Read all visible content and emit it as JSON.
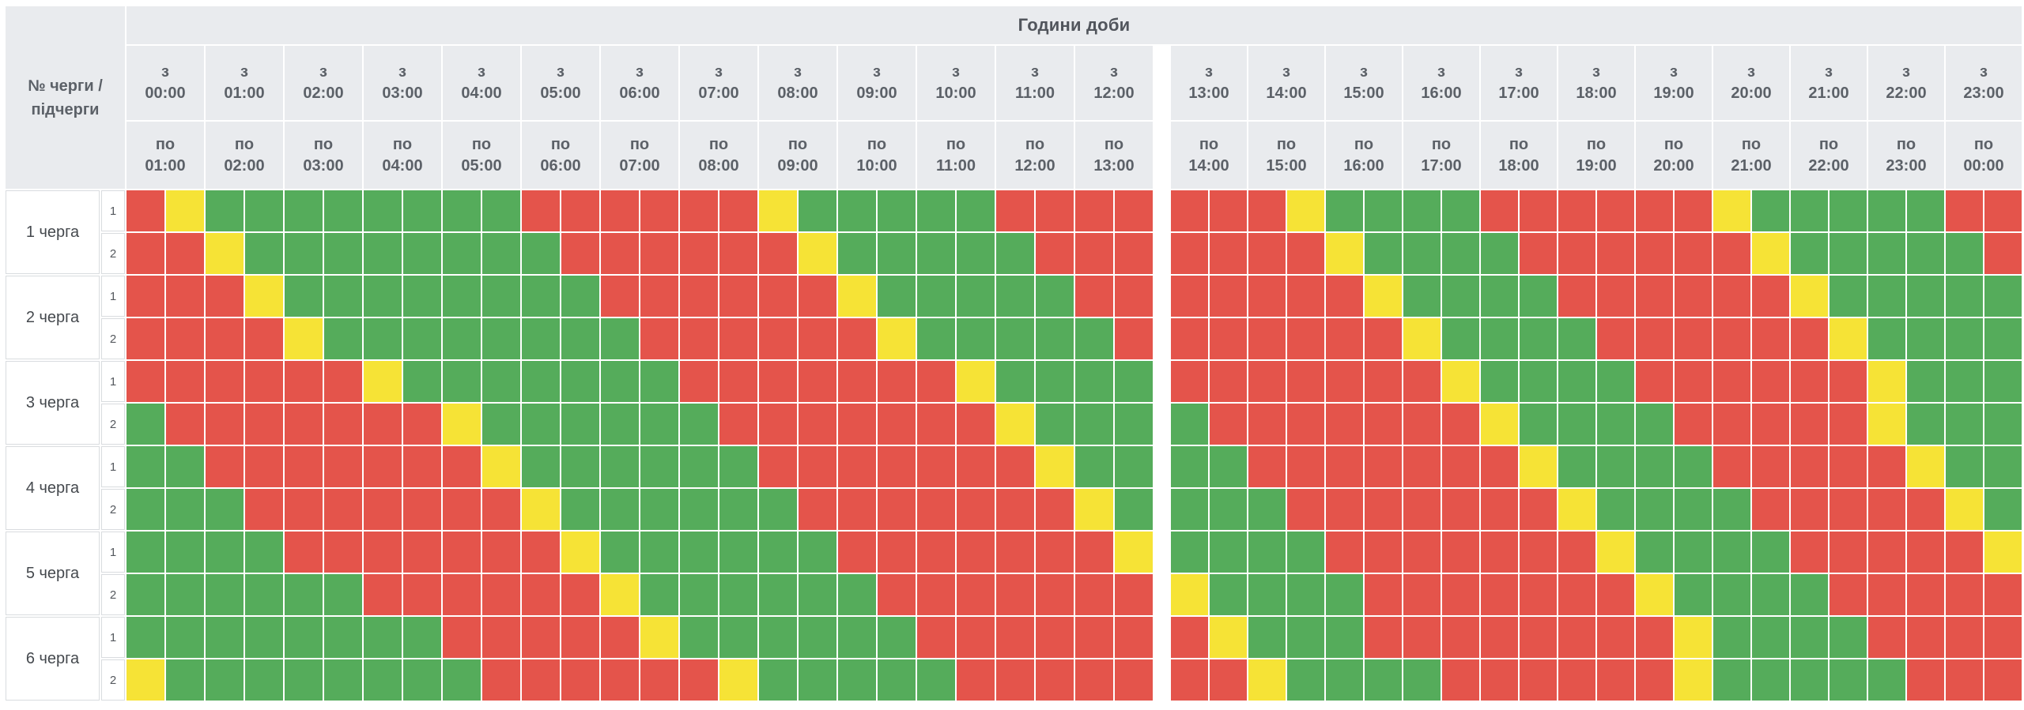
{
  "title": "Години доби",
  "corner_label": "№ черги / підчерги",
  "header": {
    "from_word": "з",
    "to_word": "по",
    "hours": [
      {
        "from": "00:00",
        "to": "01:00"
      },
      {
        "from": "01:00",
        "to": "02:00"
      },
      {
        "from": "02:00",
        "to": "03:00"
      },
      {
        "from": "03:00",
        "to": "04:00"
      },
      {
        "from": "04:00",
        "to": "05:00"
      },
      {
        "from": "05:00",
        "to": "06:00"
      },
      {
        "from": "06:00",
        "to": "07:00"
      },
      {
        "from": "07:00",
        "to": "08:00"
      },
      {
        "from": "08:00",
        "to": "09:00"
      },
      {
        "from": "09:00",
        "to": "10:00"
      },
      {
        "from": "10:00",
        "to": "11:00"
      },
      {
        "from": "11:00",
        "to": "12:00"
      },
      {
        "from": "12:00",
        "to": "13:00"
      },
      {
        "from": "13:00",
        "to": "14:00"
      },
      {
        "from": "14:00",
        "to": "15:00"
      },
      {
        "from": "15:00",
        "to": "16:00"
      },
      {
        "from": "16:00",
        "to": "17:00"
      },
      {
        "from": "17:00",
        "to": "18:00"
      },
      {
        "from": "18:00",
        "to": "19:00"
      },
      {
        "from": "19:00",
        "to": "20:00"
      },
      {
        "from": "20:00",
        "to": "21:00"
      },
      {
        "from": "21:00",
        "to": "22:00"
      },
      {
        "from": "22:00",
        "to": "23:00"
      },
      {
        "from": "23:00",
        "to": "00:00"
      }
    ]
  },
  "slot_minutes": 30,
  "slots_per_row": 48,
  "legend": {
    "on_color": "#55ac5b",
    "off_color": "#e4544b",
    "maybe_color": "#f6e336",
    "header_bg": "#e9ebee"
  },
  "slot_codes": {
    "G": "power-on",
    "R": "power-off",
    "Y": "possible-outage"
  },
  "queues": [
    {
      "label": "1 черга",
      "subqueues": [
        {
          "label": "1",
          "slots": "RYGGGGGGGGRRRRRRYGGGGGRRRRRRRYGGGGRRRRRRYGGGGGRR"
        },
        {
          "label": "2",
          "slots": "RRYGGGGGGGGRRRRRRYGGGGGRRRRRRRYGGGGRRRRRRYGGGGGR"
        }
      ]
    },
    {
      "label": "2 черга",
      "subqueues": [
        {
          "label": "1",
          "slots": "RRRYGGGGGGGGRRRRRRYGGGGGRRRRRRRYGGGGRRRRRRYGGGGG"
        },
        {
          "label": "2",
          "slots": "RRRRYGGGGGGGGRRRRRRYGGGGGRRRRRRRYGGGGRRRRRRYGGGG"
        }
      ]
    },
    {
      "label": "3 черга",
      "subqueues": [
        {
          "label": "1",
          "slots": "RRRRRRYGGGGGGGRRRRRRRYGGGGRRRRRRRYGGGGRRRRRRYGGG"
        },
        {
          "label": "2",
          "slots": "GRRRRRRRYGGGGGGRRRRRRRYGGGGRRRRRRRYGGGGRRRRRYGGG"
        }
      ]
    },
    {
      "label": "4 черга",
      "subqueues": [
        {
          "label": "1",
          "slots": "GGRRRRRRRYGGGGGGRRRRRRRYGGGGRRRRRRRYGGGGRRRRRYGG"
        },
        {
          "label": "2",
          "slots": "GGGRRRRRRRYGGGGGGRRRRRRRYGGGGRRRRRRRYGGGGRRRRRYG"
        }
      ]
    },
    {
      "label": "5 черга",
      "subqueues": [
        {
          "label": "1",
          "slots": "GGGGRRRRRRRYGGGGGGRRRRRRRYGGGGRRRRRRRYGGGGRRRRRY"
        },
        {
          "label": "2",
          "slots": "GGGGGGRRRRRRYGGGGGGRRRRRRRYGGGGRRRRRRRYGGGGRRRRR"
        }
      ]
    },
    {
      "label": "6 черга",
      "subqueues": [
        {
          "label": "1",
          "slots": "GGGGGGGGRRRRRYGGGGGGRRRRRRRYGGGRRRRRRRRYGGGGRRRR"
        },
        {
          "label": "2",
          "slots": "YGGGGGGGGRRRRRRYGGGGGRRRRRRRYGGGGRRRRRRYGGGGGRRR"
        }
      ]
    }
  ]
}
